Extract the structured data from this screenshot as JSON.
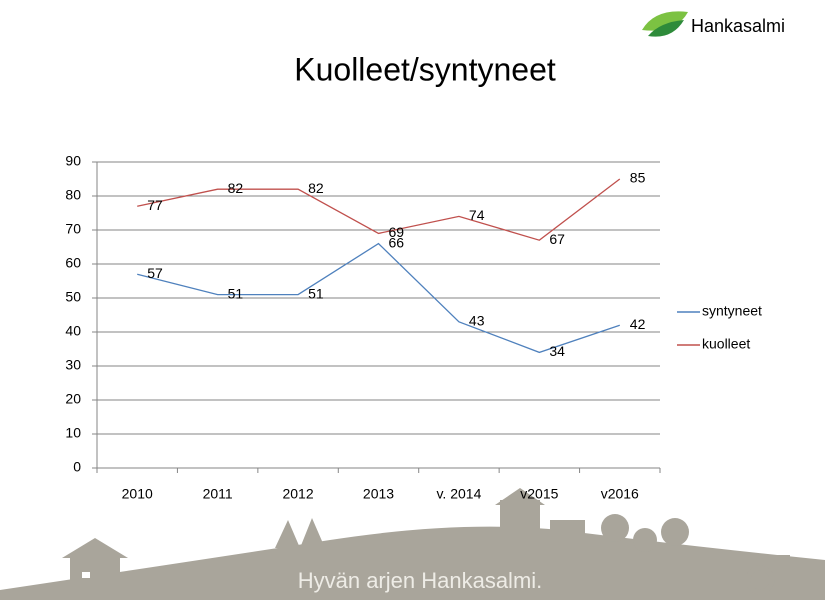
{
  "logo_text": "Hankasalmi",
  "footer_text": "Hyvän arjen Hankasalmi.",
  "chart_data": {
    "type": "line",
    "title": "Kuolleet/syntyneet",
    "categories": [
      "2010",
      "2011",
      "2012",
      "2013",
      "v. 2014",
      "v2015",
      "v2016"
    ],
    "series": [
      {
        "name": "syntyneet",
        "color": "#4f81bd",
        "values": [
          57,
          51,
          51,
          66,
          43,
          34,
          42
        ]
      },
      {
        "name": "kuolleet",
        "color": "#c0504d",
        "values": [
          77,
          82,
          82,
          69,
          74,
          67,
          85
        ]
      }
    ],
    "ylim": [
      0,
      90
    ],
    "yticks": [
      0,
      10,
      20,
      30,
      40,
      50,
      60,
      70,
      80,
      90
    ],
    "grid": true,
    "legend": "right",
    "data_labels": true
  }
}
